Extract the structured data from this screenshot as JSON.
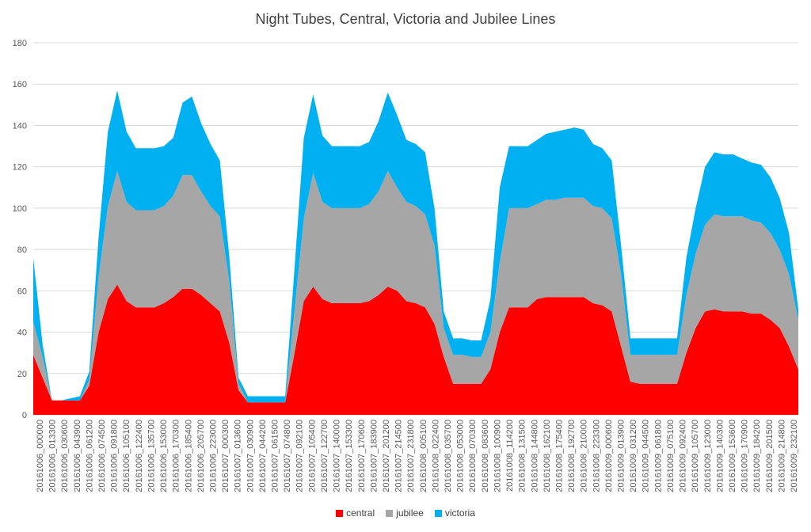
{
  "chart_data": {
    "type": "area",
    "stacked": true,
    "title": "Night Tubes, Central, Victoria and Jubilee Lines",
    "xlabel": "",
    "ylabel": "",
    "ylim": [
      0,
      180
    ],
    "yticks": [
      0,
      20,
      40,
      60,
      80,
      100,
      120,
      140,
      160,
      180
    ],
    "grid": "horizontal",
    "legend_position": "bottom",
    "x_tick_labels": [
      "20161006_000000",
      "20161006_013300",
      "20161006_030600",
      "20161006_043900",
      "20161006_061200",
      "20161006_074500",
      "20161006_091800",
      "20161006_105100",
      "20161006_122400",
      "20161006_135700",
      "20161006_153000",
      "20161006_170300",
      "20161006_185400",
      "20161006_205700",
      "20161006_223000",
      "20161007_000300",
      "20161007_013600",
      "20161007_030900",
      "20161007_044200",
      "20161007_061500",
      "20161007_074800",
      "20161007_092100",
      "20161007_105400",
      "20161007_122700",
      "20161007_140000",
      "20161007_153300",
      "20161007_170600",
      "20161007_183900",
      "20161007_201200",
      "20161007_214500",
      "20161007_231800",
      "20161008_005100",
      "20161008_022400",
      "20161008_035700",
      "20161008_053000",
      "20161008_070300",
      "20161008_083600",
      "20161008_100900",
      "20161008_114200",
      "20161008_131500",
      "20161008_144800",
      "20161008_162100",
      "20161008_175400",
      "20161008_192700",
      "20161008_210000",
      "20161008_223300",
      "20161009_000600",
      "20161009_013900",
      "20161009_031200",
      "20161009_044500",
      "20161009_061800",
      "20161009_075100",
      "20161009_092400",
      "20161009_105700",
      "20161009_123000",
      "20161009_140300",
      "20161009_153600",
      "20161009_170900",
      "20161009_184200",
      "20161009_201500",
      "20161009_214800",
      "20161009_232100"
    ],
    "series": [
      {
        "name": "central",
        "color": "#ff0000",
        "values": [
          29,
          18,
          7,
          7,
          7,
          7,
          14,
          40,
          56,
          63,
          55,
          52,
          52,
          52,
          54,
          57,
          61,
          61,
          58,
          54,
          50,
          35,
          12,
          6,
          6,
          6,
          6,
          6,
          30,
          55,
          62,
          56,
          54,
          54,
          54,
          54,
          55,
          58,
          62,
          60,
          55,
          54,
          52,
          44,
          28,
          15,
          15,
          15,
          15,
          22,
          40,
          52,
          52,
          52,
          56,
          57,
          57,
          57,
          57,
          57,
          54,
          53,
          50,
          33,
          16,
          15,
          15,
          15,
          15,
          15,
          30,
          42,
          50,
          51,
          50,
          50,
          50,
          49,
          49,
          46,
          42,
          33,
          22
        ]
      },
      {
        "name": "jubilee",
        "color": "#a6a6a6",
        "values": [
          16,
          10,
          0,
          0,
          0,
          0,
          3,
          27,
          45,
          55,
          48,
          47,
          47,
          47,
          47,
          49,
          55,
          55,
          50,
          47,
          46,
          30,
          3,
          0,
          0,
          0,
          0,
          0,
          21,
          40,
          55,
          47,
          46,
          46,
          46,
          46,
          47,
          50,
          56,
          50,
          48,
          47,
          45,
          38,
          14,
          14,
          14,
          13,
          13,
          18,
          34,
          48,
          48,
          48,
          46,
          47,
          47,
          48,
          48,
          48,
          47,
          47,
          45,
          35,
          13,
          14,
          14,
          14,
          14,
          14,
          28,
          36,
          42,
          46,
          46,
          46,
          46,
          45,
          44,
          42,
          38,
          35,
          24
        ]
      },
      {
        "name": "victoria",
        "color": "#00b0f0",
        "values": [
          31,
          6,
          0,
          0,
          1,
          2,
          4,
          19,
          36,
          39,
          34,
          30,
          30,
          30,
          29,
          28,
          35,
          38,
          33,
          30,
          27,
          12,
          3,
          3,
          3,
          3,
          3,
          3,
          20,
          39,
          38,
          32,
          30,
          30,
          30,
          30,
          30,
          34,
          38,
          35,
          30,
          30,
          30,
          18,
          8,
          8,
          8,
          8,
          8,
          16,
          36,
          30,
          30,
          30,
          31,
          32,
          33,
          33,
          34,
          33,
          30,
          29,
          28,
          14,
          8,
          8,
          8,
          8,
          8,
          8,
          18,
          22,
          28,
          30,
          30,
          30,
          28,
          28,
          28,
          27,
          25,
          20,
          5
        ]
      }
    ]
  }
}
